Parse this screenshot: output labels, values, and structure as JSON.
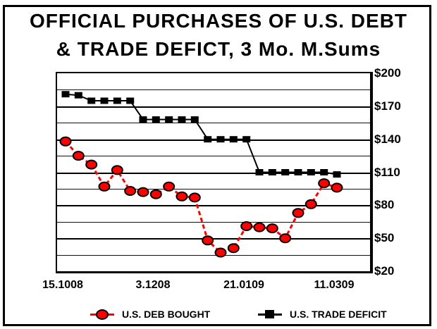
{
  "title": {
    "line1": "OFFICIAL PURCHASES OF U.S. DEBT",
    "line2": "& TRADE DEFICT, 3 Mo. M.Sums"
  },
  "legend": {
    "items": [
      {
        "label": "U.S. DEB BOUGHT",
        "marker": "red-circle-marker",
        "color": "#ff0000"
      },
      {
        "label": "U.S. TRADE DEFICIT",
        "marker": "black-square-marker",
        "color": "#000000"
      }
    ]
  },
  "chart_data": {
    "type": "line",
    "title": "OFFICIAL PURCHASES OF U.S. DEBT & TRADE DEFICT, 3 Mo. M.Sums",
    "units": "billions USD, 3 month moving sums, weekly points",
    "ylim": [
      20,
      200
    ],
    "gridline_step": 15,
    "grid": true,
    "legend_position": "bottom",
    "y_ticks": [
      {
        "label": "$200",
        "value": 200
      },
      {
        "label": "$170",
        "value": 170
      },
      {
        "label": "$140",
        "value": 140
      },
      {
        "label": "$110",
        "value": 110
      },
      {
        "label": "$80",
        "value": 80
      },
      {
        "label": "$50",
        "value": 50
      },
      {
        "label": "$20",
        "value": 20
      }
    ],
    "x_ticks": [
      {
        "label": "15.1008",
        "index": 0
      },
      {
        "label": "3.1208",
        "index": 7
      },
      {
        "label": "21.0109",
        "index": 14
      },
      {
        "label": "11.0309",
        "index": 21
      }
    ],
    "n_points": 22,
    "series": [
      {
        "name": "U.S. DEB BOUGHT",
        "color": "#ff0000",
        "marker": "circle",
        "line_style": "dashed",
        "values": [
          138,
          125,
          117,
          97,
          112,
          93,
          92,
          90,
          97,
          88,
          87,
          48,
          37,
          41,
          61,
          60,
          59,
          50,
          73,
          81,
          100,
          96
        ]
      },
      {
        "name": "U.S. TRADE DEFICIT",
        "color": "#000000",
        "marker": "square",
        "line_style": "solid",
        "values": [
          181,
          180,
          175,
          175,
          175,
          175,
          158,
          158,
          158,
          158,
          158,
          140,
          140,
          140,
          140,
          110,
          110,
          110,
          110,
          110,
          110,
          108
        ]
      }
    ]
  }
}
